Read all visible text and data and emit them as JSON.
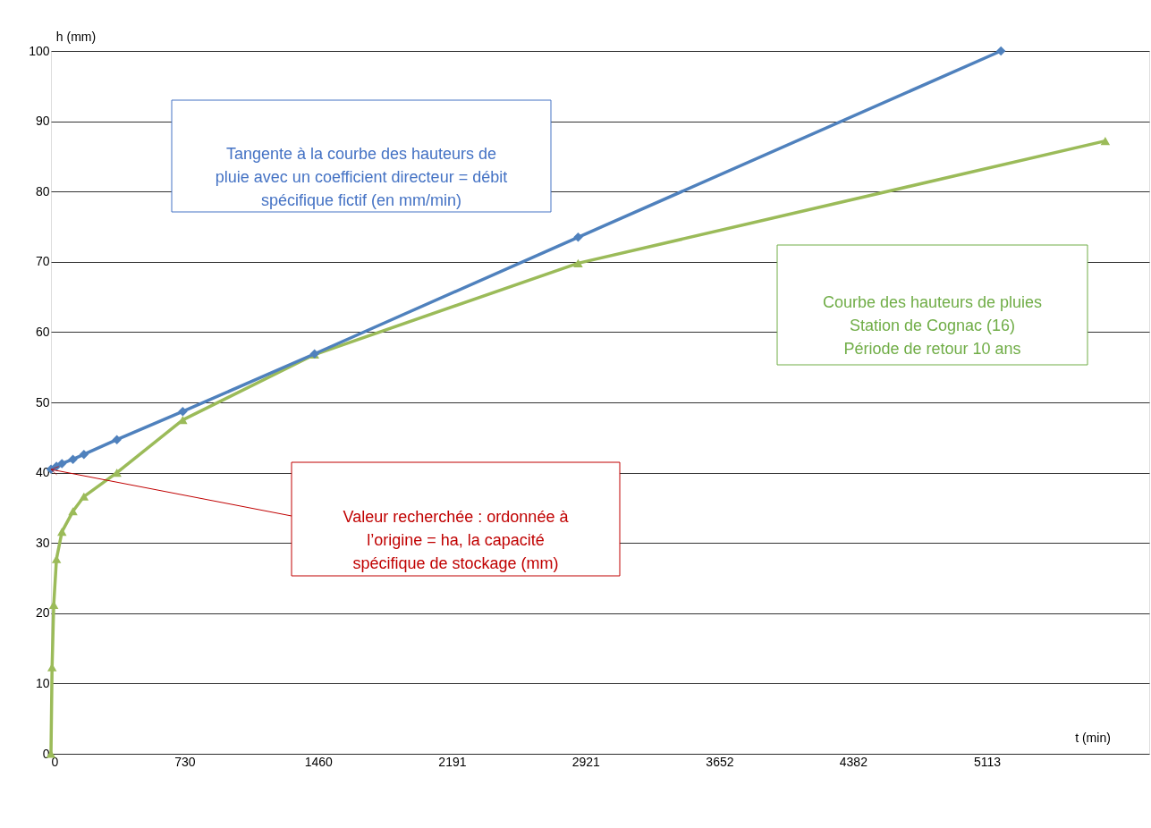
{
  "chart_data": {
    "type": "line",
    "xlabel": "t (min)",
    "ylabel": "h (mm)",
    "xlim": [
      0,
      6000
    ],
    "xticks": [
      0,
      730,
      1460,
      2191,
      2921,
      3652,
      4382,
      5113
    ],
    "ylim": [
      0,
      100
    ],
    "yticks": [
      0,
      10,
      20,
      30,
      40,
      50,
      60,
      70,
      80,
      90,
      100
    ],
    "grid": "y",
    "legend": false,
    "line_style": "solid",
    "series": [
      {
        "color": "#9bbb59",
        "marker": "triangle",
        "x": [
          0,
          6,
          15,
          30,
          60,
          120,
          180,
          360,
          720,
          1440,
          2880,
          5760
        ],
        "values": [
          0,
          12.3,
          21.2,
          27.7,
          31.6,
          34.5,
          36.6,
          40.0,
          47.5,
          56.8,
          69.8,
          87.2
        ]
      },
      {
        "color": "#4f81bd",
        "marker": "diamond",
        "x": [
          0,
          30,
          60,
          120,
          180,
          360,
          720,
          1440,
          2880,
          5190
        ],
        "values": [
          40.5,
          40.9,
          41.3,
          41.9,
          42.6,
          44.7,
          48.7,
          56.9,
          73.5,
          100
        ]
      }
    ],
    "annotations": [
      "Tangente à la courbe des hauteurs de\npluie avec un coefficient directeur = débit\nspécifique fictif (en mm/min)",
      "Courbe des hauteurs de pluies\nStation de Cognac (16)\nPériode de retour 10 ans",
      "Valeur recherchée : ordonnée à\nl’origine = ha, la capacité\nspécifique de stockage (mm)"
    ]
  }
}
